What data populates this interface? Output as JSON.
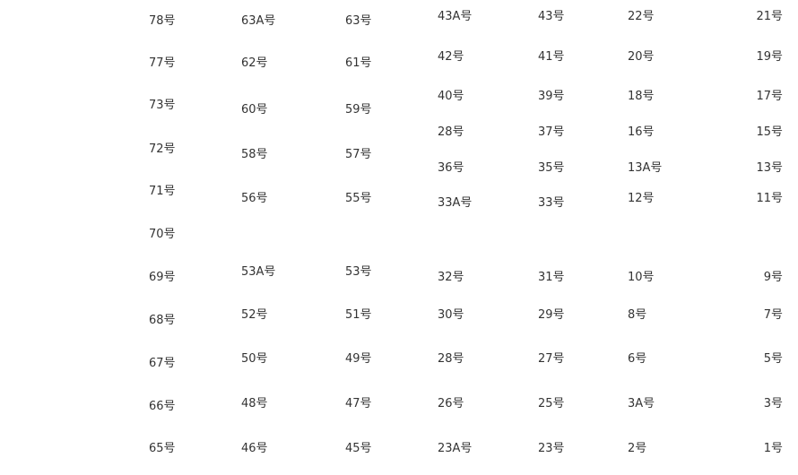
{
  "columns": [
    [
      "78号",
      "77号",
      "73号",
      "72号",
      "71号",
      "70号",
      "69号",
      "68号",
      "67号",
      "66号",
      "65号"
    ],
    [
      "63A号",
      "62号",
      "60号",
      "58号",
      "56号",
      "53A号",
      "52号",
      "50号",
      "48号",
      "46号"
    ],
    [
      "63号",
      "61号",
      "59号",
      "57号",
      "55号",
      "53号",
      "51号",
      "49号",
      "47号",
      "45号"
    ],
    [
      "43A号",
      "42号",
      "40号",
      "28号",
      "36号",
      "33A号",
      "32号",
      "30号",
      "28号",
      "26号",
      "23A号"
    ],
    [
      "43号",
      "41号",
      "39号",
      "37号",
      "35号",
      "33号",
      "31号",
      "29号",
      "27号",
      "25号",
      "23号"
    ],
    [
      "22号",
      "20号",
      "18号",
      "16号",
      "13A号",
      "12号",
      "10号",
      "8号",
      "6号",
      "3A号",
      "2号"
    ],
    [
      "21号",
      "19号",
      "17号",
      "15号",
      "13号",
      "11号",
      "9号",
      "7号",
      "5号",
      "3号",
      "1号"
    ]
  ]
}
